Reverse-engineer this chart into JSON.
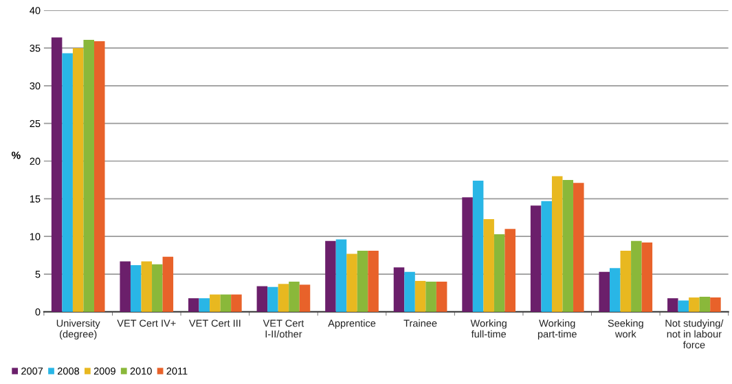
{
  "chart_data": {
    "type": "bar",
    "ylabel": "%",
    "categories": [
      "University\n(degree)",
      "VET Cert IV+",
      "VET Cert III",
      "VET Cert\nI-II/other",
      "Apprentice",
      "Trainee",
      "Working\nfull-time",
      "Working\npart-time",
      "Seeking\nwork",
      "Not studying/\nnot in labour\nforce"
    ],
    "series": [
      {
        "name": "2007",
        "color": "#6b1f6b",
        "values": [
          36.4,
          6.7,
          1.8,
          3.4,
          9.4,
          5.9,
          15.2,
          14.1,
          5.3,
          1.8
        ]
      },
      {
        "name": "2008",
        "color": "#29b6e6",
        "values": [
          34.3,
          6.2,
          1.8,
          3.3,
          9.6,
          5.3,
          17.4,
          14.7,
          5.8,
          1.5
        ]
      },
      {
        "name": "2009",
        "color": "#e8b820",
        "values": [
          35.0,
          6.7,
          2.3,
          3.7,
          7.7,
          4.1,
          12.3,
          18.0,
          8.1,
          1.9
        ]
      },
      {
        "name": "2010",
        "color": "#8ab83a",
        "values": [
          36.1,
          6.3,
          2.3,
          4.0,
          8.1,
          4.0,
          10.3,
          17.5,
          9.4,
          2.0
        ]
      },
      {
        "name": "2011",
        "color": "#e8622a",
        "values": [
          35.9,
          7.3,
          2.3,
          3.6,
          8.1,
          4.0,
          11.0,
          17.1,
          9.2,
          1.9
        ]
      }
    ],
    "ylim": [
      0,
      40
    ],
    "yticks": [
      0,
      5,
      10,
      15,
      20,
      25,
      30,
      35,
      40
    ],
    "grid": "y",
    "legend": "bottom left"
  }
}
